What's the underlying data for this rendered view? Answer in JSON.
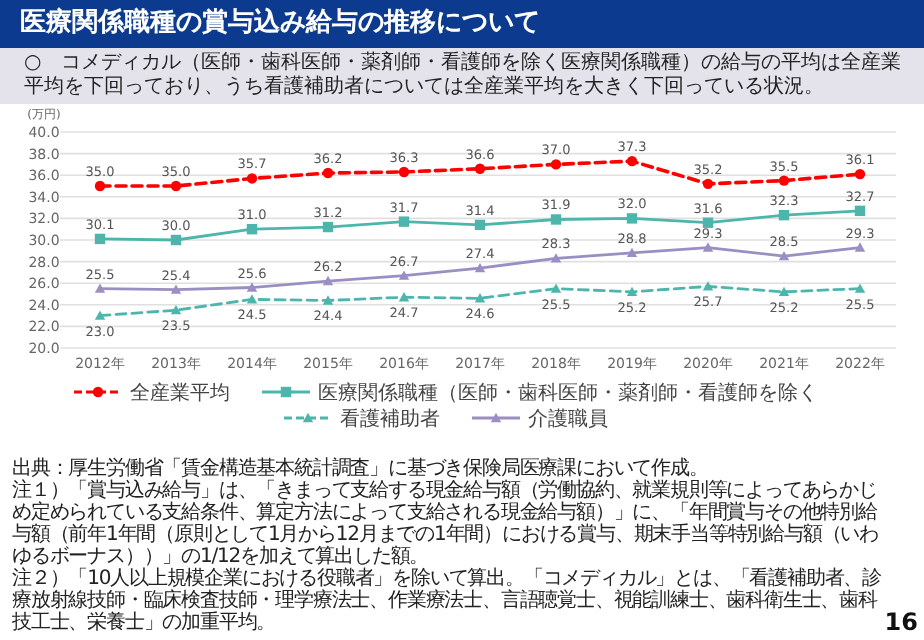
{
  "chart_data": {
    "type": "line",
    "title": "医療関係職種の賞与込み給与の推移について",
    "subtitle": "○　コメディカル（医師・歯科医師・薬剤師・看護師を除く医療関係職種）の給与の平均は全産業平均を下回っており、うち看護補助者については全産業平均を大きく下回っている状況。",
    "ylabel": "(万円)",
    "categories": [
      "2012年",
      "2013年",
      "2014年",
      "2015年",
      "2016年",
      "2017年",
      "2018年",
      "2019年",
      "2020年",
      "2021年",
      "2022年"
    ],
    "ylim": [
      20,
      40
    ],
    "yticks": [
      {
        "value": 20,
        "label": "20.0"
      },
      {
        "value": 22,
        "label": "22.0"
      },
      {
        "value": 24,
        "label": "24.0"
      },
      {
        "value": 26,
        "label": "26.0"
      },
      {
        "value": 28,
        "label": "28.0"
      },
      {
        "value": 30,
        "label": "30.0"
      },
      {
        "value": 32,
        "label": "32.0"
      },
      {
        "value": 34,
        "label": "34.0"
      },
      {
        "value": 36,
        "label": "36.0"
      },
      {
        "value": 38,
        "label": "38.0"
      },
      {
        "value": 40,
        "label": "40.0"
      }
    ],
    "grid": "y",
    "legend": "bottom",
    "series": [
      {
        "name": "全産業平均",
        "color": "#ff0000",
        "marker": "circle",
        "line_style": "dashed",
        "values": [
          35.0,
          35.0,
          35.7,
          36.2,
          36.3,
          36.6,
          37.0,
          37.3,
          35.2,
          35.5,
          36.1
        ],
        "value_labels": [
          "35.0",
          "35.0",
          "35.7",
          "36.2",
          "36.3",
          "36.6",
          "37.0",
          "37.3",
          "35.2",
          "35.5",
          "36.1"
        ]
      },
      {
        "name": "医療関係職種（医師・歯科医師・薬剤師・看護師を除く",
        "color": "#4db6ac",
        "marker": "square",
        "line_style": "solid",
        "values": [
          30.1,
          30.0,
          31.0,
          31.2,
          31.7,
          31.4,
          31.9,
          32.0,
          31.6,
          32.3,
          32.7
        ],
        "value_labels": [
          "30.1",
          "30.0",
          "31.0",
          "31.2",
          "31.7",
          "31.4",
          "31.9",
          "32.0",
          "31.6",
          "32.3",
          "32.7"
        ]
      },
      {
        "name": "看護補助者",
        "color": "#4db6ac",
        "marker": "triangle",
        "line_style": "dashed",
        "values": [
          23.0,
          23.5,
          24.5,
          24.4,
          24.7,
          24.6,
          25.5,
          25.2,
          25.7,
          25.2,
          25.5
        ],
        "value_labels": [
          "23.0",
          "23.5",
          "24.5",
          "24.4",
          "24.7",
          "24.6",
          "25.5",
          "25.2",
          "25.7",
          "25.2",
          "25.5"
        ]
      },
      {
        "name": "介護職員",
        "color": "#9b8ec4",
        "marker": "triangle",
        "line_style": "solid",
        "values": [
          25.5,
          25.4,
          25.6,
          26.2,
          26.7,
          27.4,
          28.3,
          28.8,
          29.3,
          28.5,
          29.3
        ],
        "value_labels": [
          "25.5",
          "25.4",
          "25.6",
          "26.2",
          "26.7",
          "27.4",
          "28.3",
          "28.8",
          "29.3",
          "28.5",
          "29.3"
        ]
      }
    ],
    "annotations": [
      "出典：厚生労働省「賃金構造基本統計調査」に基づき保険局医療課において作成。",
      "注１）「賞与込み給与」は、「きまって支給する現金給与額（労働協約、就業規則等によってあらかじめ定められている支給条件、算定方法によって支給される現金給与額）」に、「年間賞与その他特別給与額（前年1年間（原則として1月から12月までの1年間）における賞与、期末手当等特別給与額（いわゆるボーナス））」の1/12を加えて算出した額。",
      "注２）「10人以上規模企業における役職者」を除いて算出。「コメディカル」とは、「看護補助者、診療放射線技師・臨床検査技師・理学療法士、作業療法士、言語聴覚士、視能訓練士、歯科衛生士、歯科技工士、栄養士」の加重平均。",
      "16"
    ]
  }
}
